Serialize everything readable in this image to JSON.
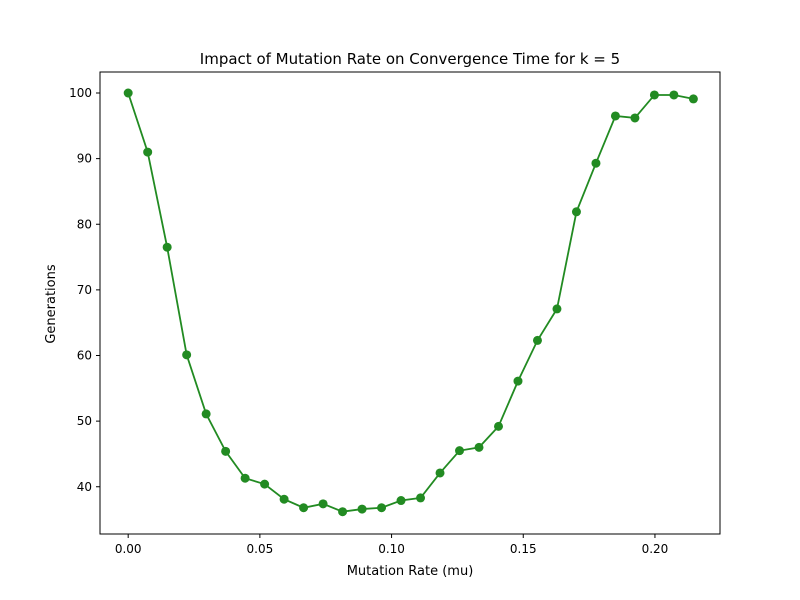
{
  "chart_data": {
    "type": "line",
    "title": "Impact of Mutation Rate on Convergence Time for k = 5",
    "xlabel": "Mutation Rate (mu)",
    "ylabel": "Generations",
    "xlim": [
      -0.0107,
      0.2247
    ],
    "ylim": [
      32.8,
      103.2
    ],
    "xticks": [
      0.0,
      0.05,
      0.1,
      0.15,
      0.2
    ],
    "xtick_labels": [
      "0.00",
      "0.05",
      "0.10",
      "0.15",
      "0.20"
    ],
    "yticks": [
      40,
      50,
      60,
      70,
      80,
      90,
      100
    ],
    "ytick_labels": [
      "40",
      "50",
      "60",
      "70",
      "80",
      "90",
      "100"
    ],
    "grid": false,
    "series": [
      {
        "color": "#228b22",
        "marker": "circle",
        "x": [
          0.0,
          0.0074,
          0.0148,
          0.0222,
          0.0296,
          0.037,
          0.0444,
          0.0518,
          0.0592,
          0.0666,
          0.074,
          0.0814,
          0.0888,
          0.0962,
          0.1036,
          0.111,
          0.1184,
          0.1258,
          0.1332,
          0.1406,
          0.148,
          0.1554,
          0.1628,
          0.1702,
          0.1776,
          0.185,
          0.1924,
          0.1998,
          0.2072,
          0.2146
        ],
        "values": [
          100.0,
          91.0,
          76.5,
          60.1,
          51.1,
          45.4,
          41.3,
          40.4,
          38.1,
          36.8,
          37.4,
          36.2,
          36.6,
          36.8,
          37.9,
          38.3,
          42.1,
          45.5,
          46.0,
          49.2,
          56.1,
          62.3,
          67.1,
          81.9,
          89.3,
          96.5,
          96.2,
          99.7,
          99.7,
          99.1
        ]
      }
    ]
  }
}
